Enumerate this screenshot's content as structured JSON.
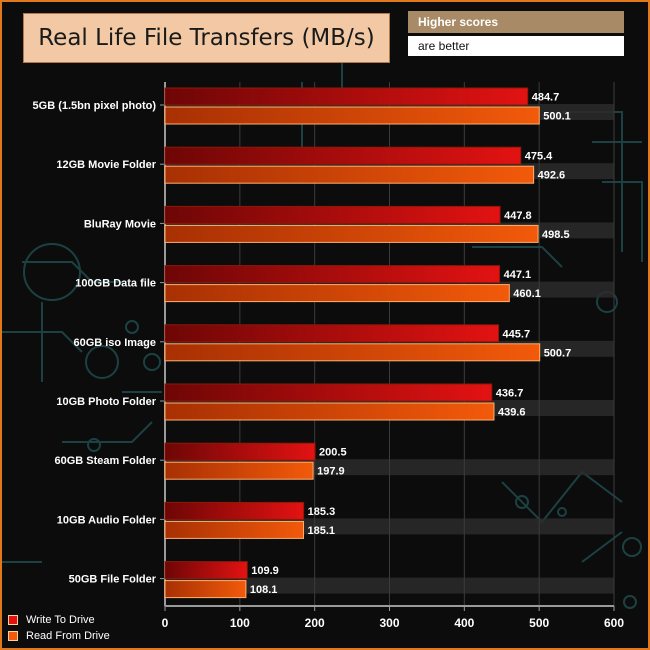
{
  "title": "Real Life File Transfers (MB/s)",
  "note": {
    "line1": "Higher scores",
    "line2": "are better"
  },
  "colors": {
    "write": "#e31212",
    "read": "#f25a0a",
    "frame": "#e0781c"
  },
  "chart_data": {
    "type": "bar",
    "orientation": "horizontal",
    "title": "Real Life File Transfers (MB/s)",
    "categories": [
      "5GB (1.5bn pixel photo)",
      "12GB Movie Folder",
      "BluRay Movie",
      "100GB Data file",
      "60GB iso Image",
      "10GB Photo Folder",
      "60GB Steam Folder",
      "10GB Audio Folder",
      "50GB File Folder"
    ],
    "series": [
      {
        "name": "Write To  Drive",
        "values": [
          484.7,
          475.4,
          447.8,
          447.1,
          445.7,
          436.7,
          200.5,
          185.3,
          109.9
        ]
      },
      {
        "name": "Read From  Drive",
        "values": [
          500.1,
          492.6,
          498.5,
          460.1,
          500.7,
          439.6,
          197.9,
          185.1,
          108.1
        ]
      }
    ],
    "value_labels": {
      "write": [
        "484.7",
        "475.4",
        "447.8",
        "447.1",
        "445.7",
        "436.7",
        "200.5",
        "185.3",
        "109.9"
      ],
      "read": [
        "500.1",
        "492.6",
        "498.5",
        "460.1",
        "500.7",
        "439.6",
        "197.9",
        "185.1",
        "108.1"
      ]
    },
    "xlim": [
      0,
      600
    ],
    "xticks": [
      0,
      100,
      200,
      300,
      400,
      500,
      600
    ],
    "xtick_labels": [
      "0",
      "100",
      "200",
      "300",
      "400",
      "500",
      "600"
    ],
    "xlabel": "",
    "ylabel": "",
    "legend": "bottom-left"
  }
}
